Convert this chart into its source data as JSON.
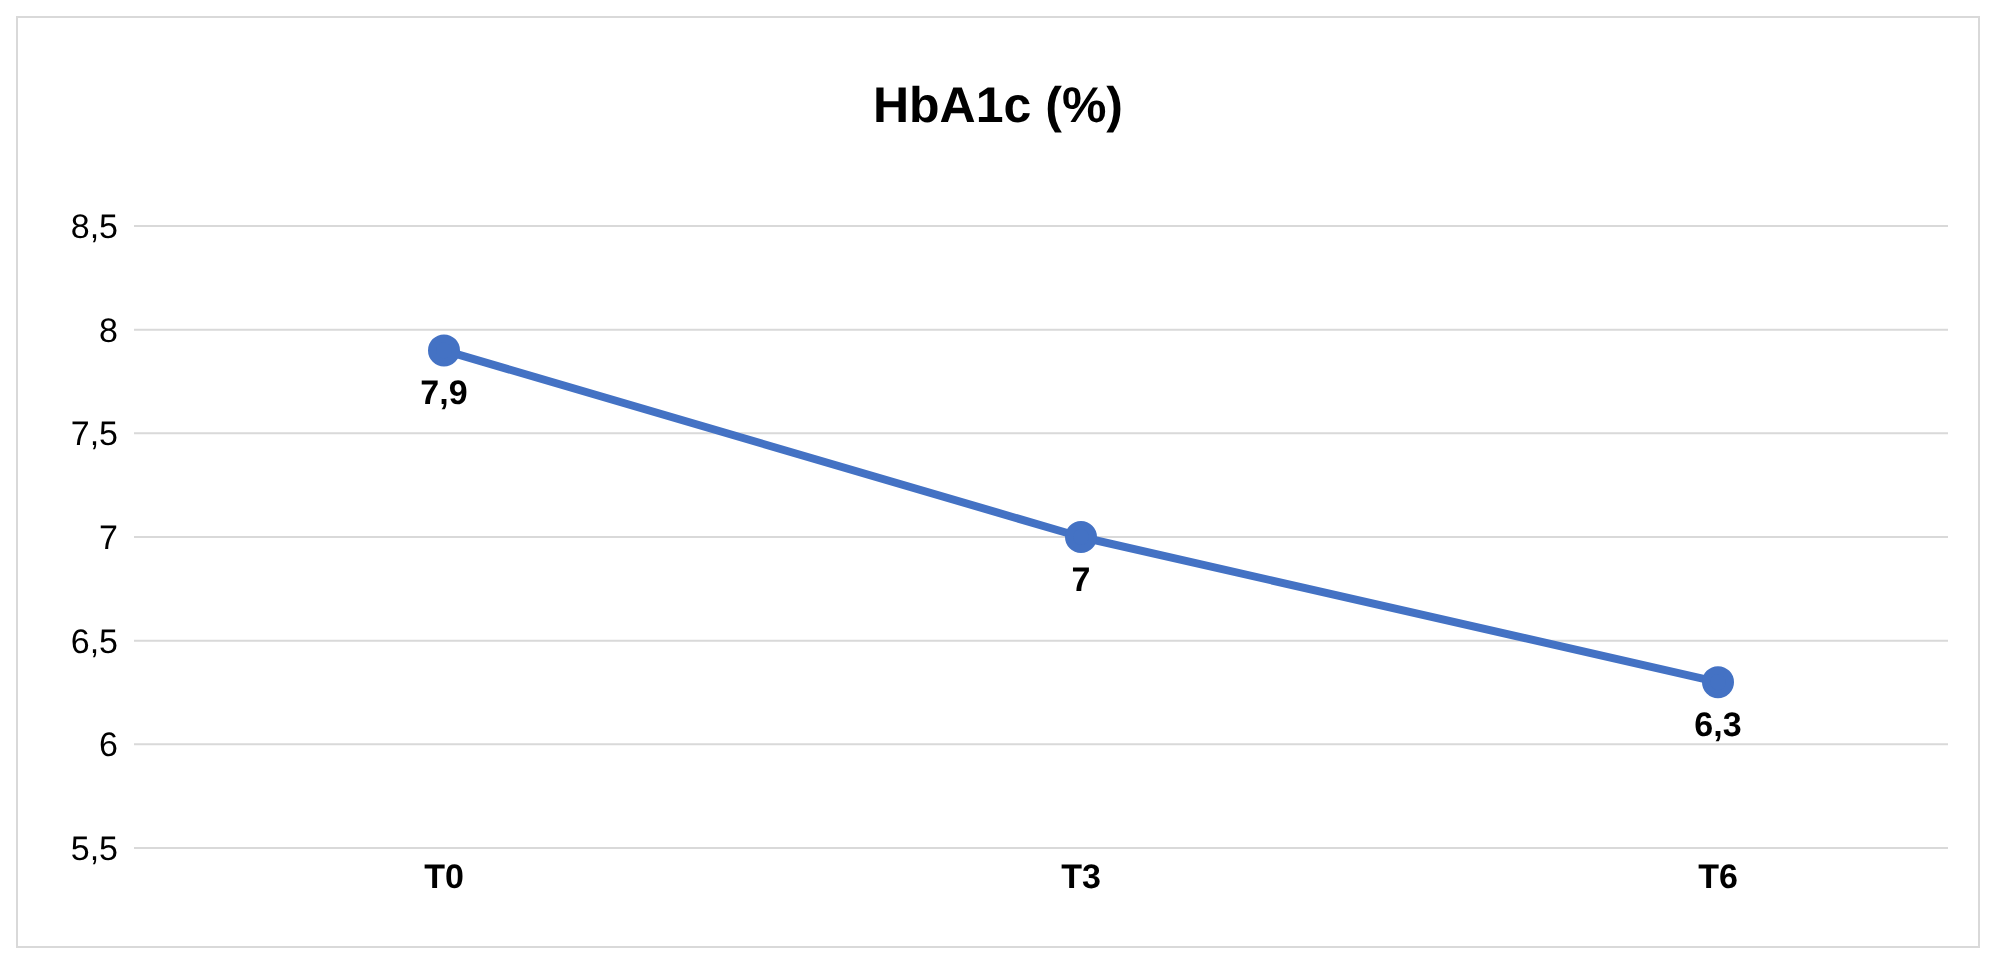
{
  "chart_data": {
    "type": "line",
    "title": "HbA1c (%)",
    "categories": [
      "T0",
      "T3",
      "T6"
    ],
    "series": [
      {
        "color": "#4472c4",
        "values": [
          7.9,
          7,
          6.3
        ],
        "value_labels": [
          "7,9",
          "7",
          "6,3"
        ]
      }
    ],
    "ylim": [
      5.5,
      8.5
    ],
    "yticks": [
      {
        "value": 5.5,
        "label": "5,5"
      },
      6,
      {
        "value": 6.5,
        "label": "6,5"
      },
      7,
      {
        "value": 7.5,
        "label": "7,5"
      },
      8,
      {
        "value": 8.5,
        "label": "8,5"
      }
    ],
    "grid": "y",
    "marker": "circle",
    "line_style": "solid"
  }
}
